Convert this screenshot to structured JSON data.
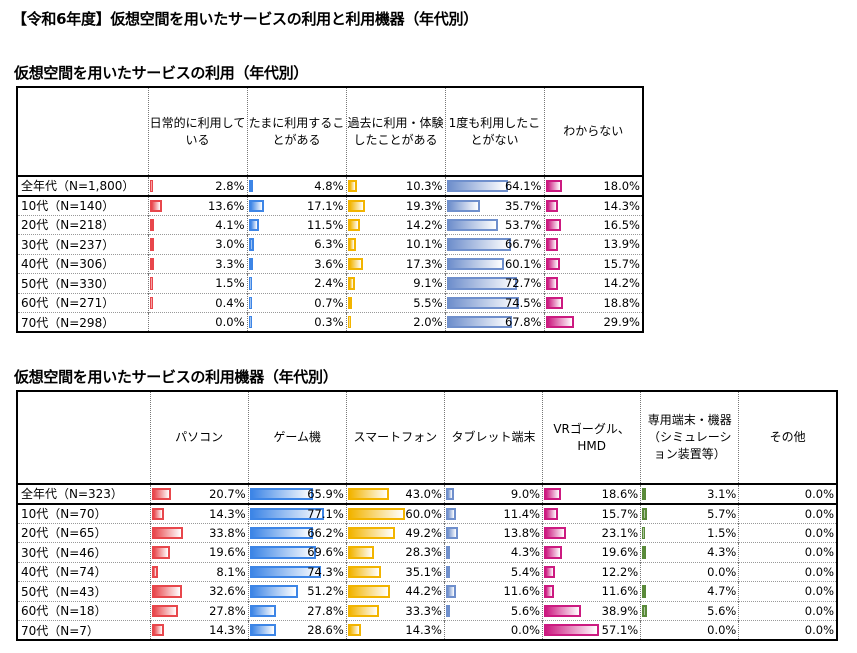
{
  "title": "【令和6年度】仮想空間を用いたサービスの利用と利用機器（年代別）",
  "tables": [
    {
      "subtitle": "仮想空間を用いたサービスの利用（年代別）",
      "columns": [
        "日常的に利用している",
        "たまに利用することがある",
        "過去に利用・体験したことがある",
        "1度も利用したことがない",
        "わからない"
      ],
      "colors": [
        "#e8474c",
        "#3d85e6",
        "#f2b400",
        "#6f8fcc",
        "#cc1a80"
      ],
      "rows": [
        {
          "label": "全年代（N=1,800）",
          "values": [
            "2.8%",
            "4.8%",
            "10.3%",
            "64.1%",
            "18.0%"
          ]
        },
        {
          "label": "10代（N=140）",
          "values": [
            "13.6%",
            "17.1%",
            "19.3%",
            "35.7%",
            "14.3%"
          ]
        },
        {
          "label": "20代（N=218）",
          "values": [
            "4.1%",
            "11.5%",
            "14.2%",
            "53.7%",
            "16.5%"
          ]
        },
        {
          "label": "30代（N=237）",
          "values": [
            "3.0%",
            "6.3%",
            "10.1%",
            "66.7%",
            "13.9%"
          ]
        },
        {
          "label": "40代（N=306）",
          "values": [
            "3.3%",
            "3.6%",
            "17.3%",
            "60.1%",
            "15.7%"
          ]
        },
        {
          "label": "50代（N=330）",
          "values": [
            "1.5%",
            "2.4%",
            "9.1%",
            "72.7%",
            "14.2%"
          ]
        },
        {
          "label": "60代（N=271）",
          "values": [
            "0.4%",
            "0.7%",
            "5.5%",
            "74.5%",
            "18.8%"
          ]
        },
        {
          "label": "70代（N=298）",
          "values": [
            "0.0%",
            "0.3%",
            "2.0%",
            "67.8%",
            "29.9%"
          ]
        }
      ]
    },
    {
      "subtitle": "仮想空間を用いたサービスの利用機器（年代別）",
      "columns": [
        "パソコン",
        "ゲーム機",
        "スマートフォン",
        "タブレット端末",
        "VRゴーグル、HMD",
        "専用端末・機器（シミュレーション装置等）",
        "その他"
      ],
      "colors": [
        "#e8474c",
        "#3d85e6",
        "#f2b400",
        "#6f8fcc",
        "#cc1a80",
        "#5a8a3a",
        "#888888"
      ],
      "rows": [
        {
          "label": "全年代（N=323）",
          "values": [
            "20.7%",
            "65.9%",
            "43.0%",
            "9.0%",
            "18.6%",
            "3.1%",
            "0.0%"
          ]
        },
        {
          "label": "10代（N=70）",
          "values": [
            "14.3%",
            "77.1%",
            "60.0%",
            "11.4%",
            "15.7%",
            "5.7%",
            "0.0%"
          ]
        },
        {
          "label": "20代（N=65）",
          "values": [
            "33.8%",
            "66.2%",
            "49.2%",
            "13.8%",
            "23.1%",
            "1.5%",
            "0.0%"
          ]
        },
        {
          "label": "30代（N=46）",
          "values": [
            "19.6%",
            "69.6%",
            "28.3%",
            "4.3%",
            "19.6%",
            "4.3%",
            "0.0%"
          ]
        },
        {
          "label": "40代（N=74）",
          "values": [
            "8.1%",
            "74.3%",
            "35.1%",
            "5.4%",
            "12.2%",
            "0.0%",
            "0.0%"
          ]
        },
        {
          "label": "50代（N=43）",
          "values": [
            "32.6%",
            "51.2%",
            "44.2%",
            "11.6%",
            "11.6%",
            "4.7%",
            "0.0%"
          ]
        },
        {
          "label": "60代（N=18）",
          "values": [
            "27.8%",
            "27.8%",
            "33.3%",
            "5.6%",
            "38.9%",
            "5.6%",
            "0.0%"
          ]
        },
        {
          "label": "70代（N=7）",
          "values": [
            "14.3%",
            "28.6%",
            "14.3%",
            "0.0%",
            "57.1%",
            "0.0%",
            "0.0%"
          ]
        }
      ]
    }
  ]
}
